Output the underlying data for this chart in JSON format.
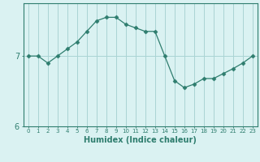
{
  "x": [
    0,
    1,
    2,
    3,
    4,
    5,
    6,
    7,
    8,
    9,
    10,
    11,
    12,
    13,
    14,
    15,
    16,
    17,
    18,
    19,
    20,
    21,
    22,
    23
  ],
  "y": [
    7.0,
    7.0,
    6.9,
    7.0,
    7.1,
    7.2,
    7.35,
    7.5,
    7.55,
    7.55,
    7.45,
    7.4,
    7.35,
    7.35,
    7.0,
    6.65,
    6.55,
    6.6,
    6.68,
    6.68,
    6.75,
    6.82,
    6.9,
    7.0
  ],
  "xlabel": "Humidex (Indice chaleur)",
  "line_color": "#2e7d6e",
  "marker": "D",
  "marker_size": 2.5,
  "bg_color": "#daf2f2",
  "grid_color": "#aad4d4",
  "axis_color": "#2e7d6e",
  "tick_color": "#2e7d6e",
  "ylim": [
    6.35,
    7.75
  ],
  "yticks": [
    6,
    7
  ],
  "xlim": [
    -0.5,
    23.5
  ]
}
